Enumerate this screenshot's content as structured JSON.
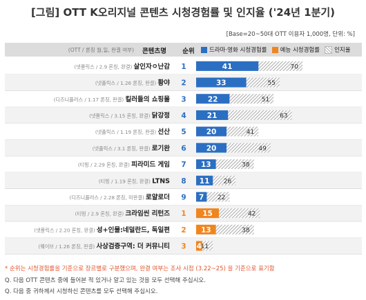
{
  "title": "[그림] OTT K오리지널 콘텐츠 시청경험률 및 인지율 ('24년 1분기)",
  "base_note": "[Base=20~50대 OTT 이용자 1,000명, 단위: %]",
  "header": {
    "meta_label": "(OTT / 론칭 월,일, 완결 여부)",
    "name_label": "콘텐츠명",
    "rank_label": "순위",
    "legend": [
      {
        "label": "드라마·영화 시청경험률",
        "color": "#2b6fc2"
      },
      {
        "label": "예능 시청경험률",
        "color": "#f0851e"
      },
      {
        "label": "인지율",
        "color": "hatch"
      }
    ]
  },
  "chart_data": {
    "type": "bar",
    "xlim": [
      0,
      100
    ],
    "rows": [
      {
        "meta": "(넷플릭스 / 2.9 론칭, 완결)",
        "name": "살인자ㅇ난감",
        "rank": "1",
        "kind": "drama",
        "viewing": 41,
        "awareness": 70
      },
      {
        "meta": "(넷플릭스 / 1.26 론칭, 완결)",
        "name": "황야",
        "rank": "2",
        "kind": "drama",
        "viewing": 33,
        "awareness": 55
      },
      {
        "meta": "(디즈니플러스 / 1.17 론칭, 완결)",
        "name": "킬러들의 쇼핑몰",
        "rank": "3",
        "kind": "drama",
        "viewing": 22,
        "awareness": 51
      },
      {
        "meta": "(넷플릭스 / 3.15 론칭, 완결)",
        "name": "닭강정",
        "rank": "4",
        "kind": "drama",
        "viewing": 21,
        "awareness": 63
      },
      {
        "meta": "(넷플릭스 / 1.19 론칭, 완결)",
        "name": "선산",
        "rank": "5",
        "kind": "drama",
        "viewing": 20,
        "awareness": 41
      },
      {
        "meta": "(넷플릭스 / 3.1 론칭, 완결)",
        "name": "로기완",
        "rank": "6",
        "kind": "drama",
        "viewing": 20,
        "awareness": 49
      },
      {
        "meta": "(티빙 / 2.29 론칭, 완결)",
        "name": "피라미드 게임",
        "rank": "7",
        "kind": "drama",
        "viewing": 13,
        "awareness": 38
      },
      {
        "meta": "(티빙 / 1.19 론칭, 완결)",
        "name": "LTNS",
        "rank": "8",
        "kind": "drama",
        "viewing": 11,
        "awareness": 26
      },
      {
        "meta": "(디즈니플러스 / 2.28 론칭, 미완결)",
        "name": "로얄로더",
        "rank": "9",
        "kind": "drama",
        "viewing": 7,
        "awareness": 22
      },
      {
        "meta": "(티빙 / 2.9 론칭, 완결)",
        "name": "크라임씬 리턴즈",
        "rank": "1",
        "kind": "variety",
        "viewing": 15,
        "awareness": 42
      },
      {
        "meta": "(넷플릭스 / 2.20 론칭, 완결)",
        "name": "성+인물:네덜란드, 독일편",
        "rank": "2",
        "kind": "variety",
        "viewing": 13,
        "awareness": 38
      },
      {
        "meta": "(웨이브 / 1.26 론칭, 완결)",
        "name": "사상검증구역: 더 커뮤니티",
        "rank": "3",
        "kind": "variety",
        "viewing": 4,
        "awareness": 11
      }
    ]
  },
  "colors": {
    "drama": "#2b6fc2",
    "variety": "#f0851e",
    "row_alt": "#f2f2f2",
    "divider": "#d6d6d6"
  },
  "footnotes": {
    "note": "* 순위는 시청경험률을 기준으로 장르별로 구분했으며, 완결 여부는 조사 시점 (3.22~25) 을 기준으로 표기함",
    "q1": "Q. 다음 OTT 콘텐츠 중에 들어본 적 있거나 알고 있는 것을 모두 선택해 주십시오.",
    "q2": "Q. 다음 중 귀하께서 시청하신 콘텐츠를 모두 선택해 주십시오."
  }
}
